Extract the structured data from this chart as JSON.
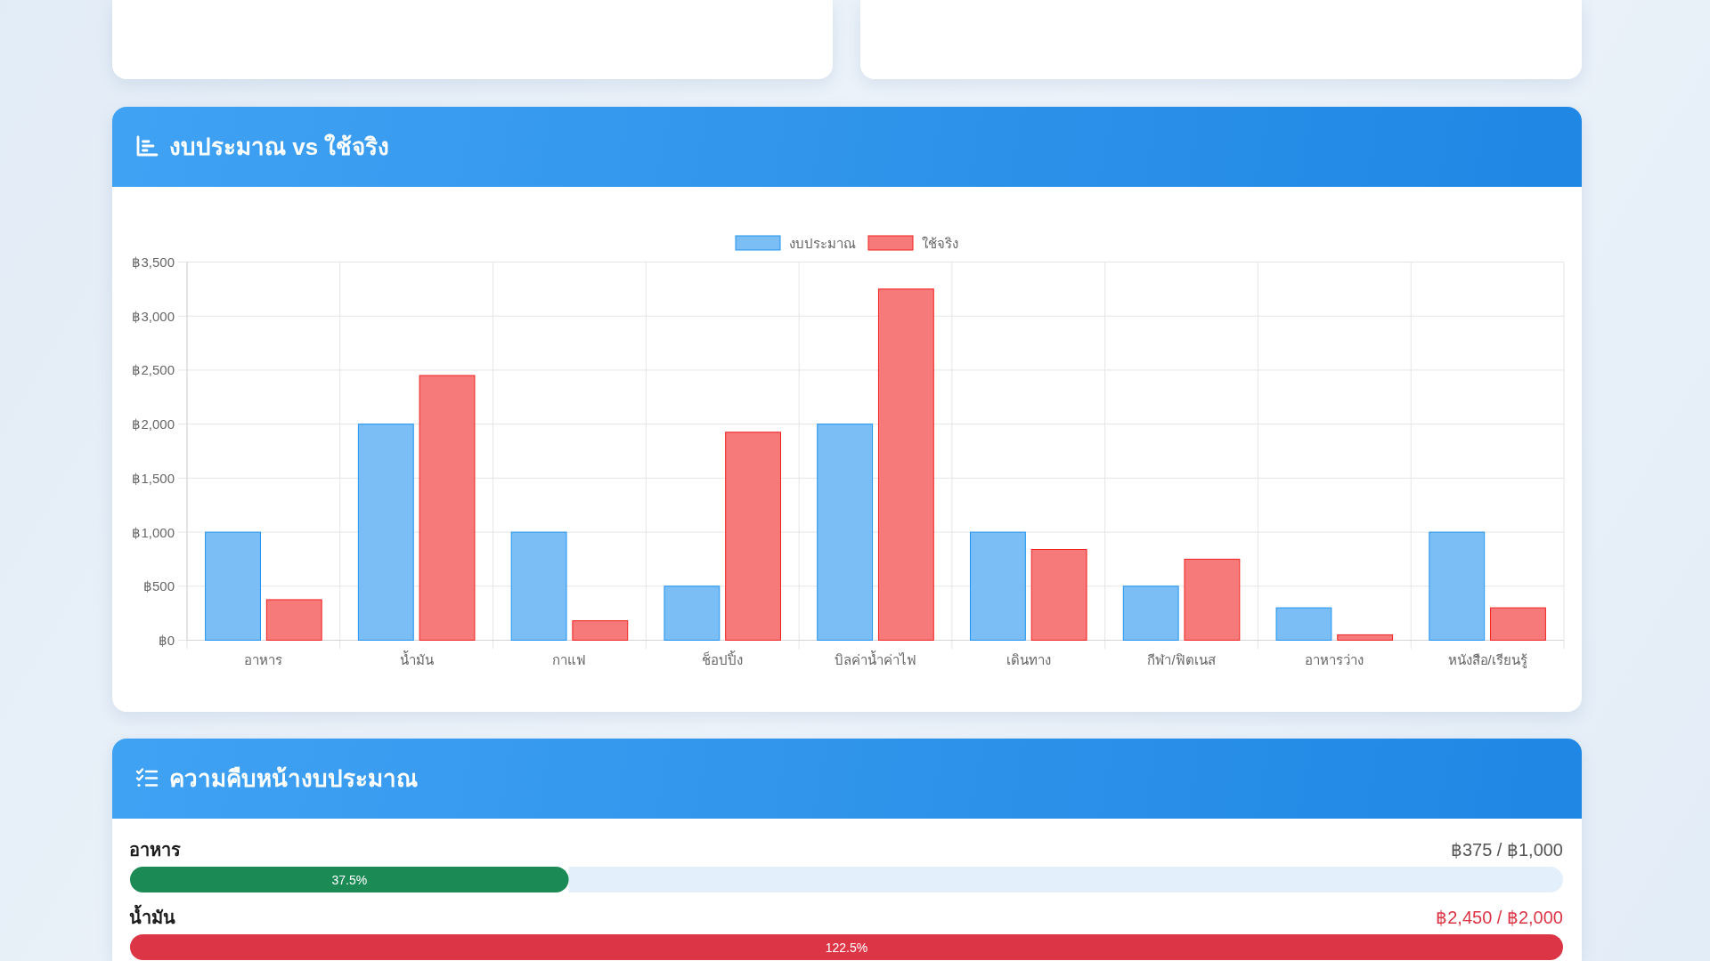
{
  "chart_data": [
    {
      "type": "bar",
      "title": "งบประมาณ vs ใช้จริง",
      "categories": [
        "อาหาร",
        "น้ำมัน",
        "กาแฟ",
        "ช็อปปิ้ง",
        "บิลค่าน้ำค่าไฟ",
        "เดินทาง",
        "กีฬา/ฟิตเนส",
        "อาหารว่าง",
        "หนังสือ/เรียนรู้"
      ],
      "series": [
        {
          "name": "งบประมาณ",
          "color": "#7abef5",
          "values": [
            1000,
            2000,
            1000,
            500,
            2000,
            1000,
            500,
            300,
            1000
          ]
        },
        {
          "name": "ใช้จริง",
          "color": "#f67a7a",
          "values": [
            375,
            2450,
            180,
            1925,
            3250,
            840,
            750,
            50,
            300
          ]
        }
      ],
      "ylim": [
        0,
        3500
      ],
      "yticks": [
        {
          "value": 0,
          "label": "฿0"
        },
        {
          "value": 500,
          "label": "฿500"
        },
        {
          "value": 1000,
          "label": "฿1,000"
        },
        {
          "value": 1500,
          "label": "฿1,500"
        },
        {
          "value": 2000,
          "label": "฿2,000"
        },
        {
          "value": 2500,
          "label": "฿2,500"
        },
        {
          "value": 3000,
          "label": "฿3,000"
        },
        {
          "value": 3500,
          "label": "฿3,500"
        }
      ],
      "grid": true,
      "legend": "top"
    },
    {
      "type": "bar",
      "orientation": "horizontal",
      "title": "ความคืบหน้างบประมาณ",
      "categories": [
        "อาหาร",
        "น้ำมัน"
      ],
      "values": [
        37.5,
        122.5
      ],
      "colors": [
        "#1b8a55",
        "#dc3545"
      ],
      "value_labels": [
        "37.5%",
        "122.5%"
      ],
      "xlim": [
        0,
        122.5
      ],
      "tick_labels": "y",
      "annotations": [
        "฿375 / ฿1,000",
        "฿2,450 / ฿2,000"
      ]
    }
  ]
}
